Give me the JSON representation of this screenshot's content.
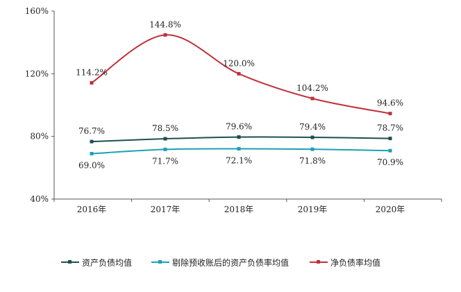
{
  "chart_data": {
    "type": "line",
    "title": "",
    "xlabel": "",
    "ylabel": "",
    "categories": [
      "2016年",
      "2017年",
      "2018年",
      "2019年",
      "2020年"
    ],
    "ylim": [
      40,
      160
    ],
    "yticks": [
      40,
      80,
      120,
      160
    ],
    "ytick_labels": [
      "40%",
      "80%",
      "120%",
      "160%"
    ],
    "grid": false,
    "legend_position": "bottom",
    "series": [
      {
        "name": "资产负债均值",
        "color": "#1f4e4e",
        "smooth": true,
        "values": [
          76.7,
          78.5,
          79.6,
          79.4,
          78.7
        ],
        "labels": [
          "76.7%",
          "78.5%",
          "79.6%",
          "79.4%",
          "78.7%"
        ],
        "label_position": "above"
      },
      {
        "name": "剔除预收账后的资产负债率均值",
        "color": "#1aa0b4",
        "smooth": true,
        "values": [
          69.0,
          71.7,
          72.1,
          71.8,
          70.9
        ],
        "labels": [
          "69.0%",
          "71.7%",
          "72.1%",
          "71.8%",
          "70.9%"
        ],
        "label_position": "below"
      },
      {
        "name": "净负债率均值",
        "color": "#c0303a",
        "smooth": true,
        "values": [
          114.2,
          144.8,
          120.0,
          104.2,
          94.6
        ],
        "labels": [
          "114.2%",
          "144.8%",
          "120.0%",
          "104.2%",
          "94.6%"
        ],
        "label_position": "above"
      }
    ]
  }
}
